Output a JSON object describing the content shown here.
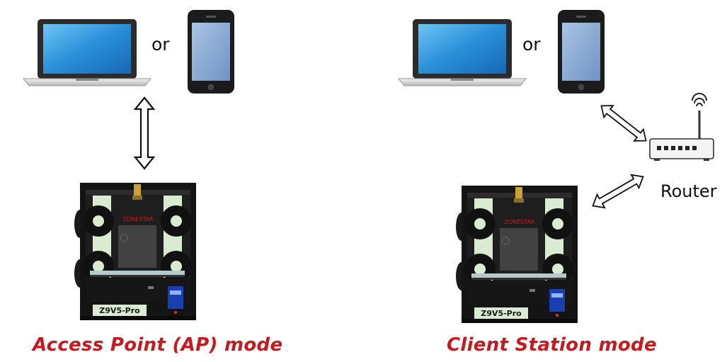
{
  "left_panel": {
    "connector_word": "or",
    "printer": {
      "brand": "ZONESTAR",
      "model": "Z9V5-Pro"
    },
    "caption": "Access Point (AP) mode"
  },
  "right_panel": {
    "connector_word": "or",
    "router_label": "Router",
    "printer": {
      "brand": "ZONESTAR",
      "model": "Z9V5-Pro"
    },
    "caption": "Client Station mode"
  },
  "colors": {
    "caption_red": "#c8191e",
    "screen_blue": "#2a8fd8",
    "frame_black": "#141414",
    "spool_green": "#d9ecd2"
  },
  "icons": [
    "laptop-icon",
    "smartphone-icon",
    "double-arrow-icon",
    "wifi-router-icon",
    "3d-printer-icon"
  ]
}
